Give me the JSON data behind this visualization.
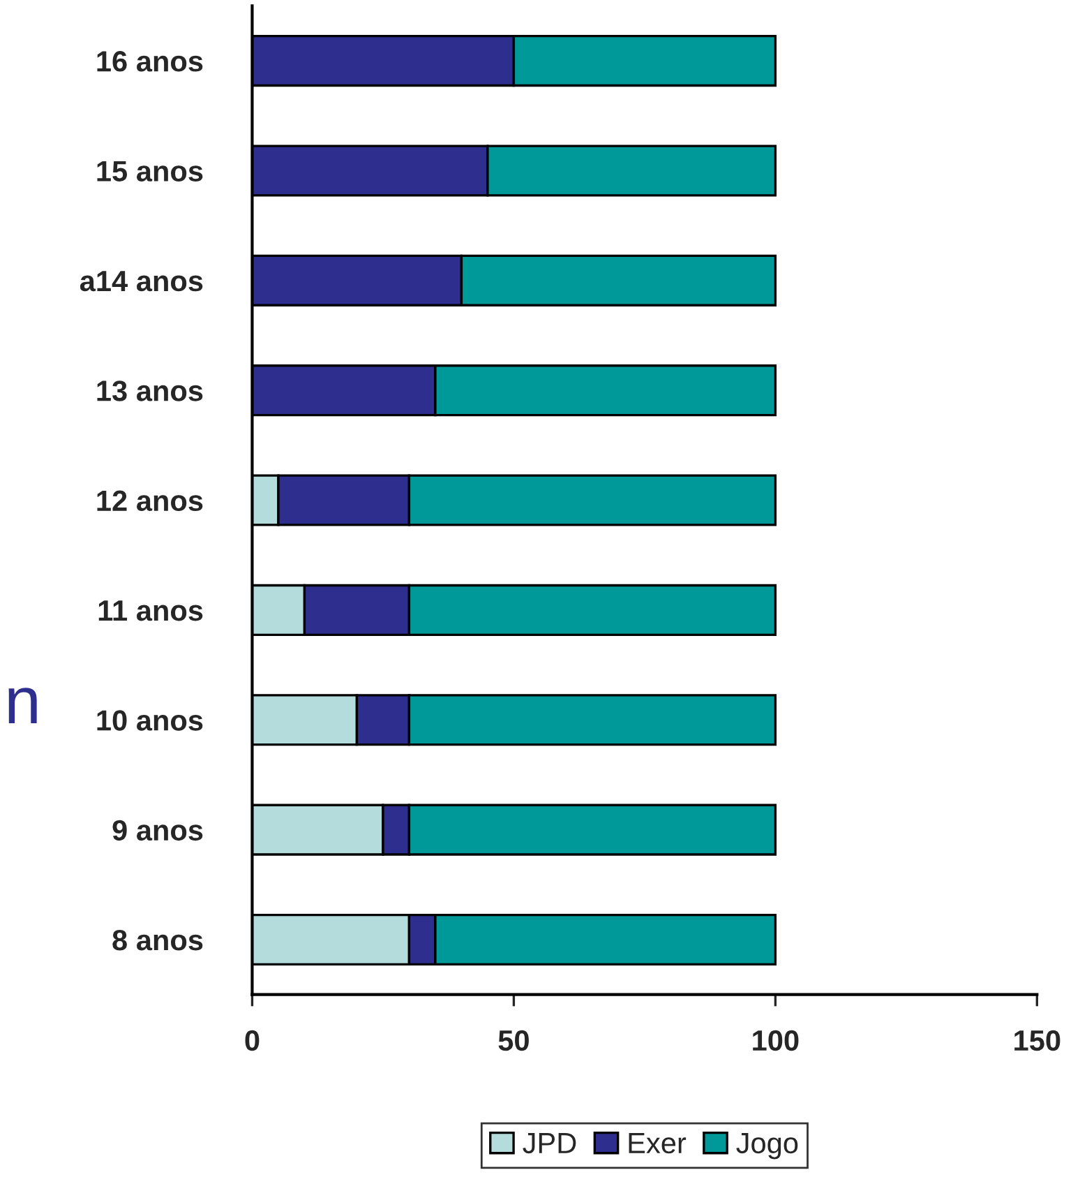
{
  "chart_data": {
    "type": "bar",
    "orientation": "horizontal",
    "stacked": true,
    "categories": [
      "16 anos",
      "15 anos",
      "a14 anos",
      "13 anos",
      "12 anos",
      "11 anos",
      "10 anos",
      "9 anos",
      "8 anos"
    ],
    "series": [
      {
        "name": "JPD",
        "color": "#b4dcdc",
        "values": [
          0,
          0,
          0,
          0,
          5,
          10,
          20,
          25,
          30
        ]
      },
      {
        "name": "Exer",
        "color": "#2e2e8f",
        "values": [
          50,
          45,
          40,
          35,
          25,
          20,
          10,
          5,
          5
        ]
      },
      {
        "name": "Jogo",
        "color": "#009999",
        "values": [
          50,
          55,
          60,
          65,
          70,
          70,
          70,
          70,
          65
        ]
      }
    ],
    "xlim": [
      0,
      150
    ],
    "xticks": [
      0,
      50,
      100,
      150
    ],
    "grid": false,
    "legend": "bottom",
    "annotations": [
      "n"
    ]
  }
}
